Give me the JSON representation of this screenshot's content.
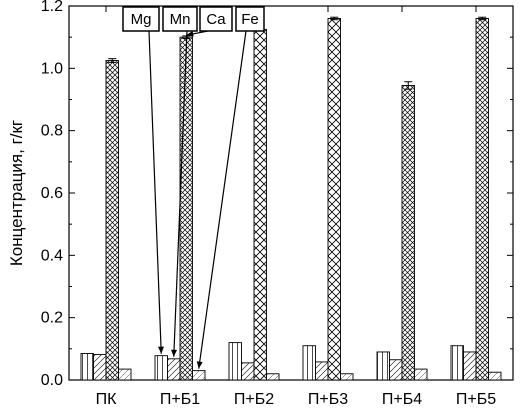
{
  "chart_data": {
    "type": "bar",
    "title": "",
    "xlabel": "",
    "ylabel": "Концентрация, г/кг",
    "ylim": [
      0,
      1.2
    ],
    "yticks": [
      "0.0",
      "0.2",
      "0.4",
      "0.6",
      "0.8",
      "1.0",
      "1.2"
    ],
    "categories": [
      "ПК",
      "П+Б1",
      "П+Б2",
      "П+Б3",
      "П+Б4",
      "П+Б5"
    ],
    "series": [
      {
        "name": "Mg",
        "values": [
          0.085,
          0.078,
          0.12,
          0.11,
          0.09,
          0.11
        ],
        "errors": [
          0,
          0,
          0,
          0,
          0,
          0
        ]
      },
      {
        "name": "Mn",
        "values": [
          0.082,
          0.068,
          0.055,
          0.058,
          0.065,
          0.09
        ],
        "errors": [
          0,
          0,
          0,
          0,
          0,
          0
        ]
      },
      {
        "name": "Ca",
        "values": [
          1.025,
          1.1,
          1.125,
          1.16,
          0.945,
          1.16
        ],
        "errors": [
          0.006,
          0.004,
          0,
          0.004,
          0.012,
          0.004
        ]
      },
      {
        "name": "Fe",
        "values": [
          0.035,
          0.03,
          0.02,
          0.02,
          0.035,
          0.025
        ],
        "errors": [
          0,
          0,
          0,
          0,
          0,
          0
        ]
      }
    ],
    "grid": false,
    "annotations": [
      "Mg",
      "Mn",
      "Ca",
      "Fe"
    ]
  }
}
